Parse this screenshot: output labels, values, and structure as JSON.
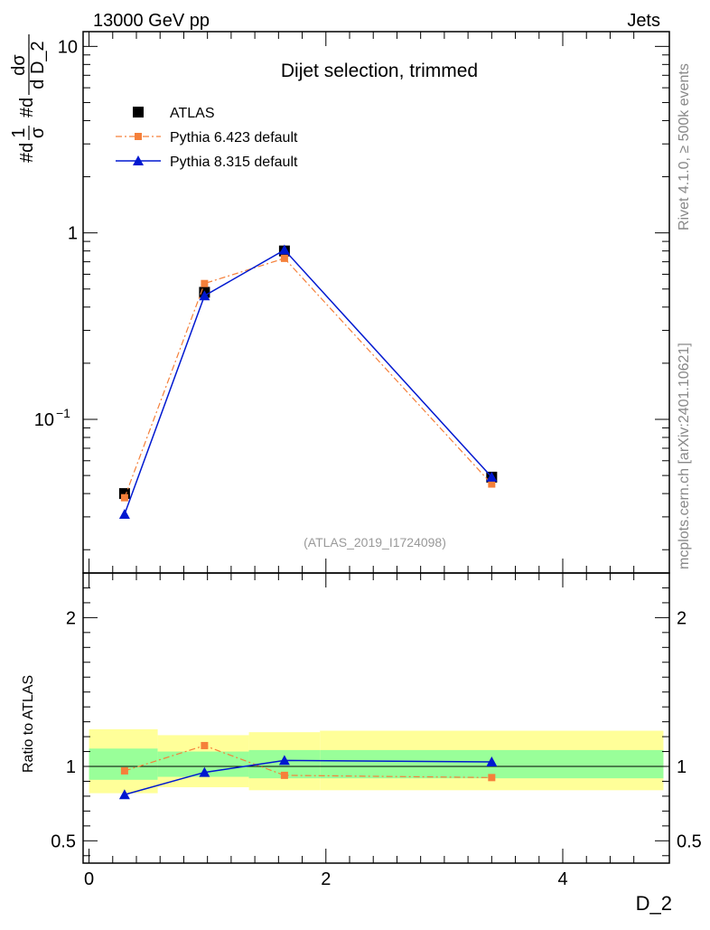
{
  "header": {
    "left": "13000 GeV pp",
    "right": "Jets"
  },
  "side_text": {
    "rivet": "Rivet 4.1.0, ≥ 500k events",
    "mcplots": "mcplots.cern.ch [arXiv:2401.10621]"
  },
  "main_ylabel": {
    "frac1_num": "1",
    "frac1_den": "σ",
    "hash1": "#d",
    "frac2_num": "dσ",
    "frac2_den": "d D_2",
    "hash2": "#d"
  },
  "ratio_ylabel": "Ratio to ATLAS",
  "xlabel": "D_2",
  "chart_data": [
    {
      "type": "line",
      "title": "Dijet selection, trimmed",
      "analysis_tag": "(ATLAS_2019_I1724098)",
      "yscale": "log",
      "ylim": [
        0.015,
        12
      ],
      "xlim": [
        -0.05,
        4.9
      ],
      "y_ticks": [
        {
          "value": 10,
          "label": "10"
        },
        {
          "value": 1,
          "label": "1"
        },
        {
          "value": 0.1,
          "label": "10",
          "sup": "−1"
        }
      ],
      "series": [
        {
          "name": "ATLAS",
          "marker": "square",
          "color": "#000000",
          "x": [
            0.3,
            0.975,
            1.65,
            3.4
          ],
          "y": [
            0.04,
            0.48,
            0.8,
            0.049
          ]
        },
        {
          "name": "Pythia 6.423 default",
          "marker": "small-square",
          "color": "#f5803a",
          "dashed": true,
          "x": [
            0.3,
            0.975,
            1.65,
            3.4
          ],
          "y": [
            0.038,
            0.535,
            0.73,
            0.045
          ]
        },
        {
          "name": "Pythia 8.315 default",
          "marker": "triangle",
          "color": "#0018d0",
          "x": [
            0.3,
            0.975,
            1.65,
            3.4
          ],
          "y": [
            0.031,
            0.46,
            0.81,
            0.049
          ]
        }
      ]
    },
    {
      "type": "line",
      "ylabel": "Ratio to ATLAS",
      "xlabel": "D_2",
      "ylim": [
        0.35,
        2.3
      ],
      "xlim": [
        -0.05,
        4.9
      ],
      "y_ticks": [
        {
          "value": 2,
          "label": "2"
        },
        {
          "value": 1,
          "label": "1"
        },
        {
          "value": 0.5,
          "label": "0.5"
        }
      ],
      "x_ticks": [
        {
          "value": 0,
          "label": "0"
        },
        {
          "value": 2,
          "label": "2"
        },
        {
          "value": 4,
          "label": "4"
        }
      ],
      "bands": [
        {
          "x0": 0.0,
          "x1": 0.58,
          "inner": [
            0.91,
            1.12
          ],
          "outer": [
            0.82,
            1.25
          ]
        },
        {
          "x0": 0.58,
          "x1": 1.35,
          "inner": [
            0.93,
            1.1
          ],
          "outer": [
            0.86,
            1.21
          ]
        },
        {
          "x0": 1.35,
          "x1": 1.95,
          "inner": [
            0.92,
            1.11
          ],
          "outer": [
            0.84,
            1.23
          ]
        },
        {
          "x0": 1.95,
          "x1": 4.85,
          "inner": [
            0.92,
            1.11
          ],
          "outer": [
            0.84,
            1.24
          ]
        }
      ],
      "series": [
        {
          "name": "Pythia 6.423 default",
          "marker": "small-square",
          "color": "#f5803a",
          "dashed": true,
          "x": [
            0.3,
            0.975,
            1.65,
            3.4
          ],
          "y": [
            0.97,
            1.14,
            0.94,
            0.925
          ]
        },
        {
          "name": "Pythia 8.315 default",
          "marker": "triangle",
          "color": "#0018d0",
          "x": [
            0.3,
            0.975,
            1.65,
            3.4
          ],
          "y": [
            0.81,
            0.96,
            1.04,
            1.03
          ]
        }
      ]
    }
  ]
}
